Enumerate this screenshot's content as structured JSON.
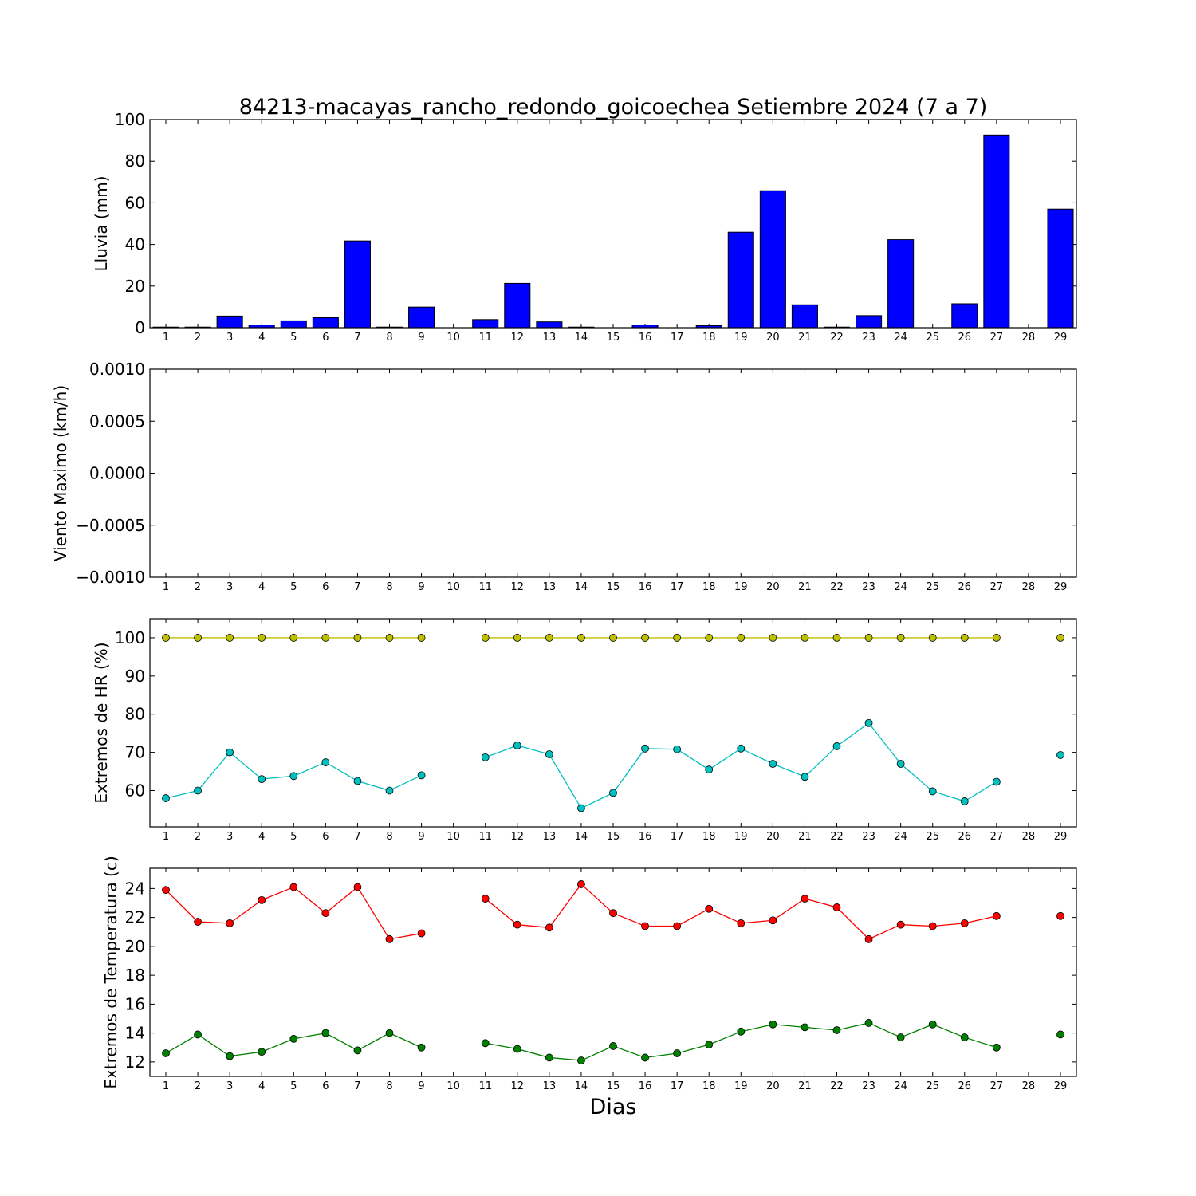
{
  "title": "84213-macayas_rancho_redondo_goicoechea Setiembre 2024  (7 a 7)",
  "xlabel": "Dias",
  "chart_data": [
    {
      "type": "bar",
      "ylabel": "Lluvia (mm)",
      "categories": [
        1,
        2,
        3,
        4,
        5,
        6,
        7,
        8,
        9,
        10,
        11,
        12,
        13,
        14,
        15,
        16,
        17,
        18,
        19,
        20,
        21,
        22,
        23,
        24,
        25,
        26,
        27,
        28,
        29
      ],
      "ylim": [
        0,
        100
      ],
      "yticks": [
        "0",
        "20",
        "40",
        "60",
        "80",
        "100"
      ],
      "color": "#0000ff",
      "values": [
        0.3,
        0.3,
        5.6,
        1.3,
        3.3,
        4.8,
        41.7,
        0.3,
        9.9,
        null,
        3.9,
        21.3,
        2.8,
        0.3,
        0,
        1.3,
        0,
        1,
        45.9,
        65.8,
        11,
        0.3,
        5.8,
        42.3,
        0,
        11.5,
        92.6,
        null,
        57
      ]
    },
    {
      "type": "line",
      "ylabel": "Viento Maximo (km/h)",
      "categories": [
        1,
        2,
        3,
        4,
        5,
        6,
        7,
        8,
        9,
        10,
        11,
        12,
        13,
        14,
        15,
        16,
        17,
        18,
        19,
        20,
        21,
        22,
        23,
        24,
        25,
        26,
        27,
        28,
        29
      ],
      "ylim": [
        -0.001,
        0.001
      ],
      "yticks": [
        "−0.0010",
        "−0.0005",
        "0.0000",
        "0.0005",
        "0.0010"
      ],
      "series": []
    },
    {
      "type": "line",
      "ylabel": "Extremos de HR (%)",
      "categories": [
        1,
        2,
        3,
        4,
        5,
        6,
        7,
        8,
        9,
        10,
        11,
        12,
        13,
        14,
        15,
        16,
        17,
        18,
        19,
        20,
        21,
        22,
        23,
        24,
        25,
        26,
        27,
        28,
        29
      ],
      "ylim": [
        50.5,
        105
      ],
      "yticks": [
        "60",
        "70",
        "80",
        "90",
        "100"
      ],
      "series": [
        {
          "color": "#bfbf00",
          "values": [
            100,
            100,
            100,
            100,
            100,
            100,
            100,
            100,
            100,
            null,
            100,
            100,
            100,
            100,
            100,
            100,
            100,
            100,
            100,
            100,
            100,
            100,
            100,
            100,
            100,
            100,
            100,
            null,
            100
          ]
        },
        {
          "color": "#00bfbf",
          "values": [
            58,
            60,
            70,
            63,
            63.8,
            67.4,
            62.5,
            60,
            64,
            null,
            68.7,
            71.8,
            69.5,
            55.4,
            59.4,
            71,
            70.8,
            65.5,
            71,
            67,
            63.6,
            71.6,
            77.7,
            67,
            59.8,
            57.2,
            62.3,
            null,
            69.3
          ]
        }
      ]
    },
    {
      "type": "line",
      "ylabel": "Extremos de Temperatura (c)",
      "categories": [
        1,
        2,
        3,
        4,
        5,
        6,
        7,
        8,
        9,
        10,
        11,
        12,
        13,
        14,
        15,
        16,
        17,
        18,
        19,
        20,
        21,
        22,
        23,
        24,
        25,
        26,
        27,
        28,
        29
      ],
      "ylim": [
        11,
        25.4
      ],
      "yticks": [
        "12",
        "14",
        "16",
        "18",
        "20",
        "22",
        "24"
      ],
      "series": [
        {
          "color": "#ff0000",
          "values": [
            23.9,
            21.7,
            21.6,
            23.2,
            24.1,
            22.3,
            24.1,
            20.5,
            20.9,
            null,
            23.3,
            21.5,
            21.3,
            24.3,
            22.3,
            21.4,
            21.4,
            22.6,
            21.6,
            21.8,
            23.3,
            22.7,
            20.5,
            21.5,
            21.4,
            21.6,
            22.1,
            null,
            22.1
          ]
        },
        {
          "color": "#008000",
          "values": [
            12.6,
            13.9,
            12.4,
            12.7,
            13.6,
            14,
            12.8,
            14,
            13,
            null,
            13.3,
            12.9,
            12.3,
            12.1,
            13.1,
            12.3,
            12.6,
            13.2,
            14.1,
            14.6,
            14.4,
            14.2,
            14.7,
            13.7,
            14.6,
            13.7,
            13,
            null,
            13.9
          ]
        }
      ]
    }
  ]
}
